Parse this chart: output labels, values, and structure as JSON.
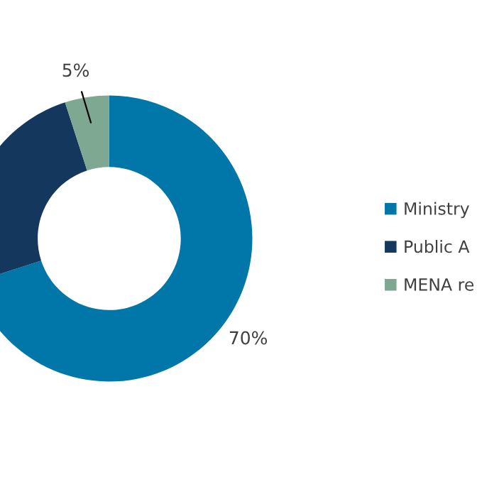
{
  "chart_data": {
    "type": "donut",
    "categories": [
      "Ministry",
      "Public A",
      "MENA re"
    ],
    "values": [
      70,
      25,
      5
    ],
    "colors": [
      "#0077a8",
      "#14375e",
      "#7fa892"
    ],
    "value_labels": [
      "70%",
      null,
      "5%"
    ],
    "legend": "right"
  }
}
